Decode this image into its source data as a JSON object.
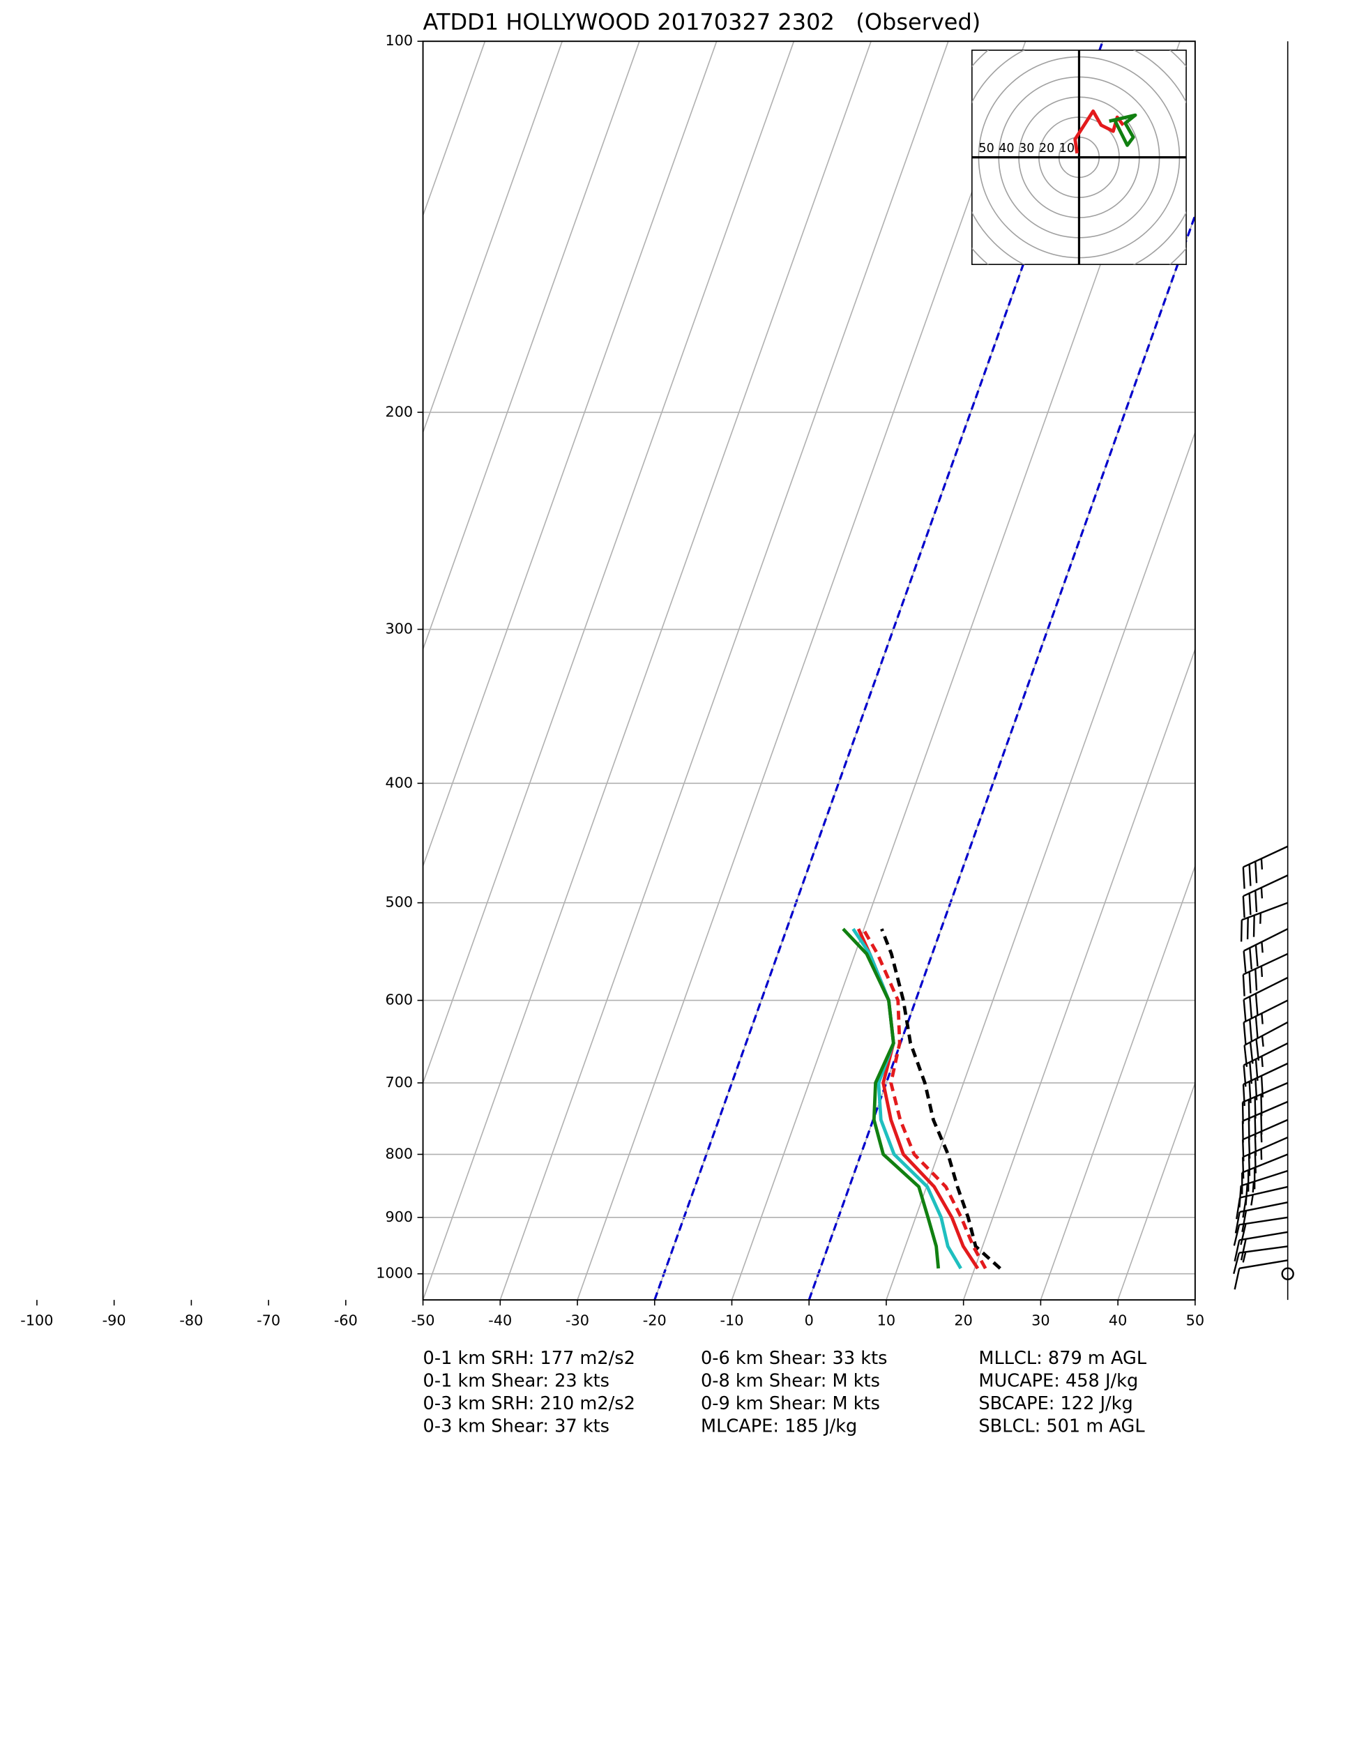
{
  "chart_data": {
    "type": "skewt",
    "title": "ATDD1 HOLLYWOOD 20170327 2302   (Observed)",
    "xlim": [
      -50,
      50
    ],
    "ylim": [
      1050,
      100
    ],
    "y_log_scale": true,
    "xticks": [
      -100,
      -90,
      -80,
      -70,
      -60,
      -50,
      -40,
      -30,
      -20,
      -10,
      0,
      10,
      20,
      30,
      40,
      50
    ],
    "yticks": [
      100,
      200,
      300,
      400,
      500,
      600,
      700,
      800,
      900,
      1000
    ],
    "grid": true,
    "highlight_isotherms": [
      -20,
      0
    ],
    "highlight_color": "#0000cc",
    "levels": [
      990,
      950,
      900,
      850,
      800,
      750,
      700,
      650,
      600,
      550,
      525
    ],
    "series": [
      {
        "color": "#000000",
        "dashed": true,
        "values": [
          23.3,
          19.1,
          16.8,
          14.0,
          11.3,
          7.8,
          5.0,
          1.3,
          -1.6,
          -5.3,
          -7.7
        ]
      },
      {
        "color": "#e31a1c",
        "dashed": true,
        "values": [
          21.4,
          18.8,
          15.9,
          12.5,
          6.9,
          3.5,
          0.6,
          -0.1,
          -2.3,
          -7.1,
          -10.1
        ]
      },
      {
        "color": "#e31a1c",
        "dashed": false,
        "values": [
          20.4,
          17.5,
          14.7,
          11.0,
          5.5,
          2.3,
          -0.4,
          -0.9,
          -3.5,
          -8.1,
          -10.7
        ]
      },
      {
        "color": "#1fbfbf",
        "dashed": false,
        "values": [
          18.2,
          15.5,
          13.3,
          10.1,
          4.3,
          1.0,
          -1.0,
          -0.9,
          -3.5,
          -8.1,
          -11.4
        ]
      },
      {
        "color": "#118011",
        "dashed": false,
        "values": [
          15.3,
          14.0,
          11.6,
          9.0,
          2.9,
          0.1,
          -1.4,
          -0.9,
          -3.5,
          -8.5,
          -12.7
        ]
      }
    ],
    "barbs": {
      "pressure": [
        450,
        475,
        500,
        525,
        550,
        575,
        600,
        625,
        650,
        675,
        700,
        725,
        750,
        775,
        800,
        825,
        850,
        875,
        900,
        925,
        950,
        975,
        1000
      ],
      "u": [
        30,
        30,
        32,
        30,
        30,
        28,
        30,
        30,
        32,
        34,
        35,
        35,
        34,
        32,
        30,
        25,
        22,
        20,
        20,
        18,
        15,
        12,
        0
      ],
      "v": [
        14,
        14,
        12,
        15,
        14,
        14,
        15,
        16,
        16,
        16,
        15,
        15,
        15,
        14,
        12,
        8,
        5,
        4,
        3,
        3,
        2,
        2,
        0
      ]
    },
    "hodograph": {
      "ring_labels": [
        50,
        40,
        30,
        20,
        10
      ],
      "series": [
        {
          "color": "#e31a1c",
          "u": [
            -1,
            -2,
            7,
            11,
            17,
            19,
            22
          ],
          "v": [
            2,
            9,
            23,
            16,
            13,
            20,
            16
          ]
        },
        {
          "color": "#118011",
          "u": [
            15,
            28,
            23,
            27,
            24,
            21,
            18
          ],
          "v": [
            18,
            21,
            17,
            10,
            6,
            12,
            18
          ]
        }
      ]
    },
    "stats": [
      [
        "0-1 km SRH: 177 m2/s2",
        "0-1 km Shear: 23 kts",
        "0-3 km SRH: 210 m2/s2",
        "0-3 km Shear: 37 kts"
      ],
      [
        "0-6 km Shear: 33 kts",
        "0-8 km Shear: M kts",
        "0-9 km Shear: M kts",
        "MLCAPE: 185 J/kg"
      ],
      [
        "MLLCL: 879 m AGL",
        "MUCAPE: 458 J/kg",
        "SBCAPE: 122 J/kg",
        "SBLCL: 501 m AGL"
      ]
    ]
  }
}
